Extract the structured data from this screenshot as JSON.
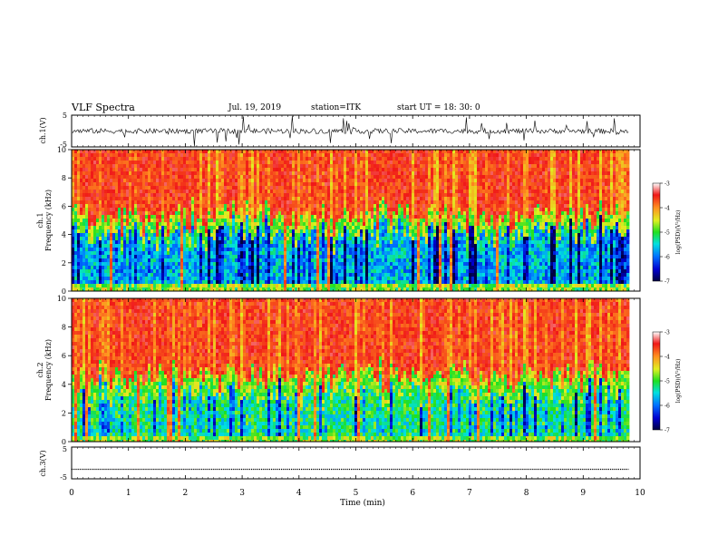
{
  "header": {
    "title": "VLF Spectra",
    "date": "Jul. 19, 2019",
    "station": "station=ITK",
    "start_ut": "start UT =  18: 30: 0"
  },
  "chart_data": [
    {
      "type": "line",
      "panel": "ch1-waveform",
      "ylabel": "ch.1(V)",
      "ylim": [
        -5,
        5
      ],
      "yticks": [
        "5",
        "-5"
      ],
      "xlim": [
        0,
        10
      ],
      "description_values": {
        "baseline": 0,
        "typical_spike_max": 5,
        "typical_spike_min": -5
      }
    },
    {
      "type": "heatmap",
      "panel": "ch1-spectrogram",
      "ylabel": "ch.1\nFrequency (kHz)",
      "ylabel_lines": [
        "ch.1",
        "Frequency (kHz)"
      ],
      "ylim": [
        0,
        10
      ],
      "yticks": [
        "0",
        "2",
        "4",
        "6",
        "8",
        "10"
      ],
      "xlim": [
        0,
        10
      ],
      "colorbar": {
        "label": "log(PSD)(V²/Hz)",
        "range": [
          -7,
          -3
        ],
        "ticks": [
          "-3",
          "-4",
          "-5",
          "-6",
          "-7"
        ]
      }
    },
    {
      "type": "heatmap",
      "panel": "ch2-spectrogram",
      "ylabel": "ch.2\nFrequency (kHz)",
      "ylabel_lines": [
        "ch.2",
        "Frequency (kHz)"
      ],
      "ylim": [
        0,
        10
      ],
      "yticks": [
        "0",
        "2",
        "4",
        "6",
        "8",
        "10"
      ],
      "xlim": [
        0,
        10
      ],
      "colorbar": {
        "label": "log(PSD)(V²/Hz)",
        "range": [
          -7,
          -3
        ],
        "ticks": [
          "-3",
          "-4",
          "-5",
          "-6",
          "-7"
        ]
      }
    },
    {
      "type": "line",
      "panel": "ch3-waveform",
      "ylabel": "ch.3(V)",
      "ylim": [
        -5,
        5
      ],
      "yticks": [
        "5",
        "-5"
      ],
      "xlim": [
        0,
        10
      ],
      "xlabel": "Time (min)",
      "xticks": [
        "0",
        "1",
        "2",
        "3",
        "4",
        "5",
        "6",
        "7",
        "8",
        "9",
        "10"
      ],
      "values": {
        "constant": -2,
        "data_end_min": 9.8
      }
    }
  ],
  "colors": {
    "low": "#000060",
    "mid_blue": "#0040ff",
    "cyan": "#00d0e0",
    "green": "#30e030",
    "yellow": "#f0f020",
    "orange": "#ff8020",
    "red": "#f02020",
    "high": "#ffffff"
  }
}
